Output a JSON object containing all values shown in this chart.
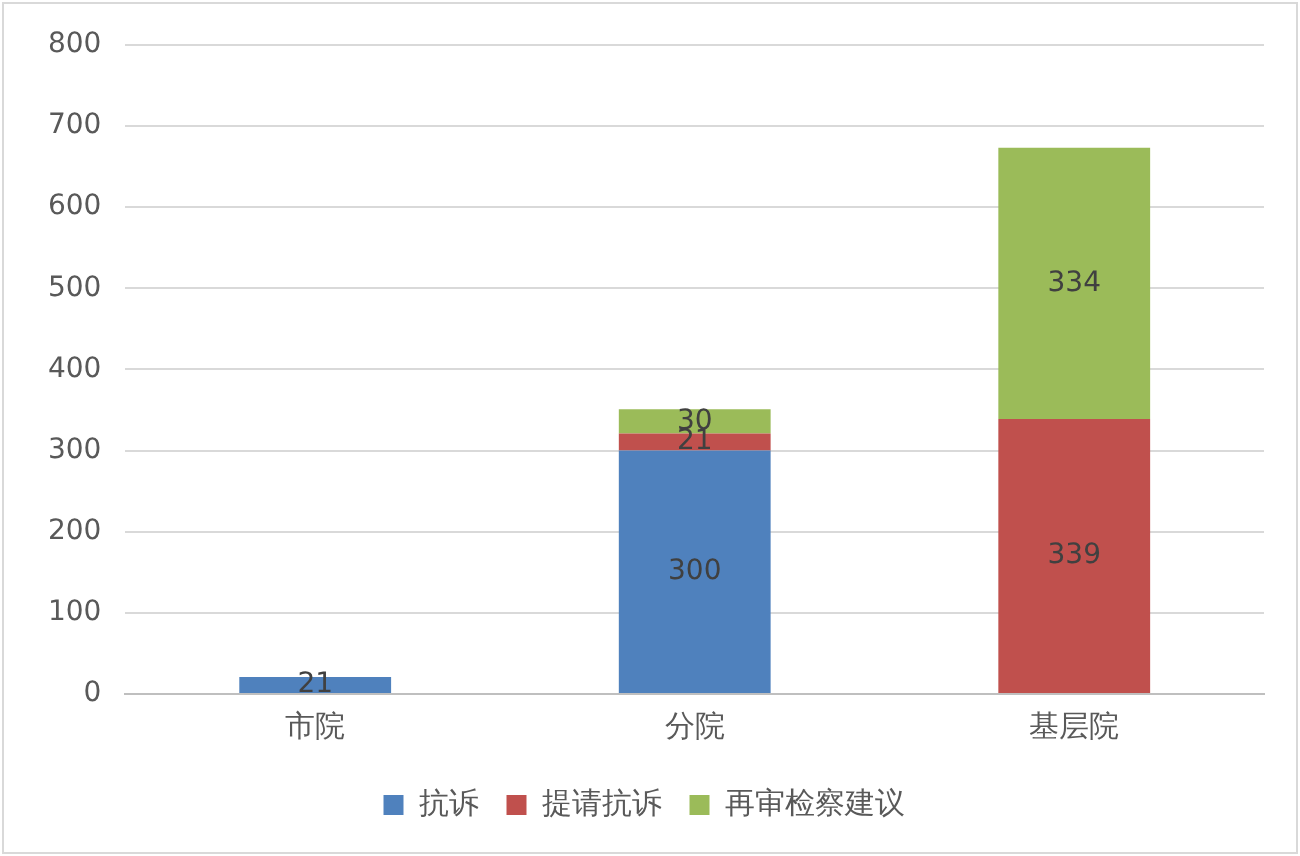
{
  "chart_data": {
    "type": "bar",
    "stacked": true,
    "categories": [
      "市院",
      "分院",
      "基层院"
    ],
    "series": [
      {
        "name": "抗诉",
        "color": "#4f81bd",
        "values": [
          21,
          300,
          null
        ]
      },
      {
        "name": "提请抗诉",
        "color": "#c0504d",
        "values": [
          null,
          21,
          339
        ]
      },
      {
        "name": "再审检察建议",
        "color": "#9bbb59",
        "values": [
          null,
          30,
          334
        ]
      }
    ],
    "ylim": [
      0,
      800
    ],
    "yticks": [
      0,
      100,
      200,
      300,
      400,
      500,
      600,
      700,
      800
    ],
    "grid": "y",
    "legend": "bottom",
    "data_labels": true
  }
}
